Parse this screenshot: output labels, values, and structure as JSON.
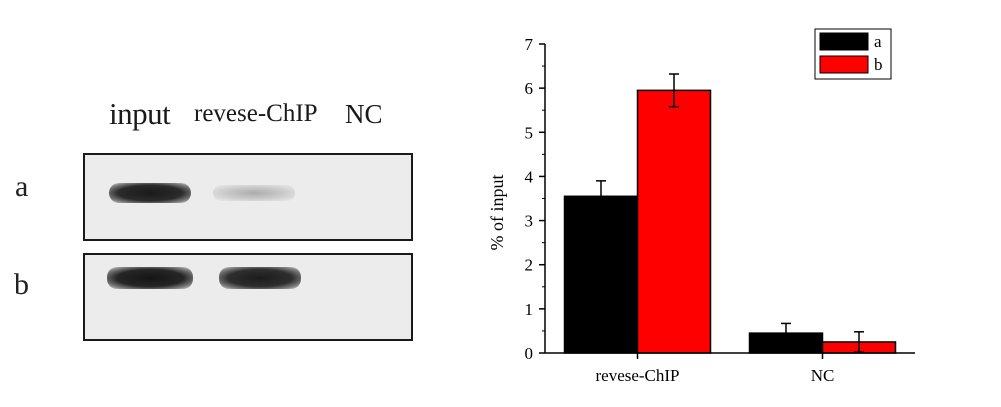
{
  "gel": {
    "headers": [
      "input",
      "revese-ChIP",
      "NC"
    ],
    "rows": [
      "a",
      "b"
    ]
  },
  "chart_data": {
    "type": "bar",
    "categories": [
      "revese-ChIP",
      "NC"
    ],
    "series": [
      {
        "name": "a",
        "color": "#000000",
        "values": [
          3.55,
          0.45
        ],
        "errors": [
          0.35,
          0.22
        ]
      },
      {
        "name": "b",
        "color": "#ff0000",
        "values": [
          5.95,
          0.25
        ],
        "errors": [
          0.37,
          0.23
        ]
      }
    ],
    "ylabel": "% of input",
    "xlabel": "",
    "ylim": [
      0,
      7
    ],
    "yticks": [
      0,
      1,
      2,
      3,
      4,
      5,
      6,
      7
    ],
    "legend_position": "top-right",
    "grid": false
  }
}
